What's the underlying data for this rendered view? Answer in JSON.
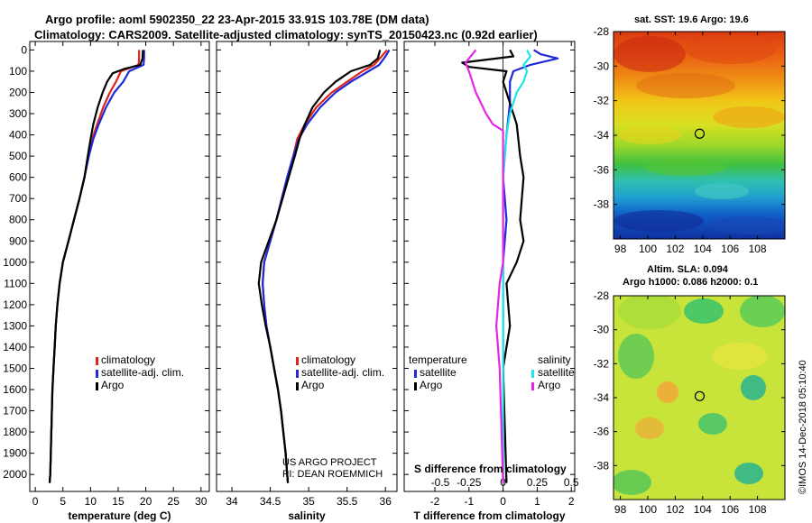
{
  "header": {
    "line1": "Argo profile: aoml 5902350_22 23-Apr-2015 33.91S 103.78E (DM data)",
    "line2": "Climatology: CARS2009. Satellite-adjusted climatology: synTS_20150423.nc (0.92d earlier)"
  },
  "colors": {
    "climatology": "#e0241b",
    "satellite": "#1f2ad6",
    "argo": "#000000",
    "cyan": "#1ee6e6",
    "magenta": "#e626e6"
  },
  "chart_data": [
    {
      "type": "line",
      "id": "temperature",
      "xlabel": "temperature (deg C)",
      "ylabel": "",
      "xlim": [
        -1,
        31.5
      ],
      "ylim": [
        2080,
        -40
      ],
      "xticks": [
        0,
        5,
        10,
        15,
        20,
        25,
        30
      ],
      "yticks": [
        0,
        100,
        200,
        300,
        400,
        500,
        600,
        700,
        800,
        900,
        1000,
        1100,
        1200,
        1300,
        1400,
        1500,
        1600,
        1700,
        1800,
        1900,
        2000
      ],
      "legend": {
        "position": "bottom-left",
        "entries": [
          "climatology",
          "satellite-adj. clim.",
          "Argo"
        ]
      },
      "series": [
        {
          "name": "climatology",
          "color": "#e0241b",
          "points": [
            [
              18.8,
              0
            ],
            [
              18.8,
              40
            ],
            [
              18.7,
              70
            ],
            [
              15.5,
              100
            ],
            [
              14.6,
              150
            ],
            [
              13.5,
              200
            ],
            [
              12.3,
              270
            ],
            [
              11.2,
              350
            ],
            [
              10.3,
              420
            ],
            [
              9.6,
              500
            ],
            [
              8.9,
              600
            ],
            [
              8.0,
              700
            ],
            [
              7.0,
              800
            ],
            [
              6.0,
              900
            ],
            [
              5.0,
              1000
            ],
            [
              4.4,
              1100
            ],
            [
              4.0,
              1200
            ],
            [
              3.7,
              1300
            ],
            [
              3.5,
              1400
            ],
            [
              3.3,
              1500
            ],
            [
              3.1,
              1600
            ],
            [
              3.0,
              1700
            ],
            [
              2.9,
              1800
            ],
            [
              2.8,
              1900
            ],
            [
              2.7,
              2000
            ],
            [
              2.6,
              2040
            ]
          ]
        },
        {
          "name": "satellite-adj. clim.",
          "color": "#1f2ad6",
          "points": [
            [
              19.7,
              0
            ],
            [
              19.7,
              40
            ],
            [
              19.6,
              70
            ],
            [
              17.0,
              100
            ],
            [
              15.9,
              150
            ],
            [
              14.3,
              200
            ],
            [
              12.8,
              270
            ],
            [
              11.5,
              350
            ],
            [
              10.5,
              420
            ],
            [
              9.7,
              500
            ],
            [
              8.9,
              600
            ],
            [
              8.0,
              700
            ],
            [
              7.0,
              800
            ],
            [
              6.0,
              900
            ],
            [
              5.0,
              1000
            ],
            [
              4.4,
              1100
            ],
            [
              4.0,
              1200
            ],
            [
              3.7,
              1300
            ],
            [
              3.5,
              1400
            ],
            [
              3.3,
              1500
            ],
            [
              3.1,
              1600
            ],
            [
              3.0,
              1700
            ],
            [
              2.9,
              1800
            ],
            [
              2.8,
              1900
            ],
            [
              2.7,
              2000
            ],
            [
              2.6,
              2040
            ]
          ]
        },
        {
          "name": "Argo",
          "color": "#000000",
          "points": [
            [
              19.5,
              0
            ],
            [
              19.4,
              40
            ],
            [
              19.0,
              70
            ],
            [
              16.0,
              90
            ],
            [
              14.0,
              110
            ],
            [
              13.0,
              150
            ],
            [
              12.2,
              200
            ],
            [
              11.3,
              270
            ],
            [
              10.5,
              350
            ],
            [
              10.0,
              420
            ],
            [
              9.5,
              500
            ],
            [
              8.9,
              600
            ],
            [
              8.0,
              700
            ],
            [
              7.0,
              800
            ],
            [
              6.0,
              900
            ],
            [
              5.0,
              1000
            ],
            [
              4.4,
              1100
            ],
            [
              4.0,
              1200
            ],
            [
              3.7,
              1300
            ],
            [
              3.5,
              1400
            ],
            [
              3.3,
              1500
            ],
            [
              3.1,
              1600
            ],
            [
              3.0,
              1700
            ],
            [
              2.9,
              1800
            ],
            [
              2.8,
              1900
            ],
            [
              2.7,
              2000
            ],
            [
              2.6,
              2040
            ]
          ]
        }
      ]
    },
    {
      "type": "line",
      "id": "salinity",
      "xlabel": "salinity",
      "xlim": [
        33.8,
        36.15
      ],
      "ylim": [
        2080,
        -40
      ],
      "xticks": [
        34,
        34.5,
        35,
        35.5,
        36
      ],
      "legend": {
        "position": "bottom-left",
        "entries": [
          "climatology",
          "satellite-adj. clim.",
          "Argo"
        ]
      },
      "credit": [
        "US ARGO PROJECT",
        "PI: DEAN ROEMMICH"
      ],
      "series": [
        {
          "name": "climatology",
          "color": "#e0241b",
          "points": [
            [
              36.02,
              0
            ],
            [
              35.95,
              30
            ],
            [
              35.85,
              70
            ],
            [
              35.7,
              100
            ],
            [
              35.5,
              150
            ],
            [
              35.3,
              200
            ],
            [
              35.1,
              270
            ],
            [
              34.95,
              350
            ],
            [
              34.85,
              420
            ],
            [
              34.8,
              500
            ],
            [
              34.72,
              600
            ],
            [
              34.65,
              700
            ],
            [
              34.58,
              800
            ],
            [
              34.5,
              900
            ],
            [
              34.42,
              1000
            ],
            [
              34.4,
              1100
            ],
            [
              34.42,
              1200
            ],
            [
              34.45,
              1300
            ],
            [
              34.5,
              1400
            ],
            [
              34.55,
              1500
            ],
            [
              34.6,
              1600
            ],
            [
              34.64,
              1700
            ],
            [
              34.67,
              1800
            ],
            [
              34.7,
              1900
            ],
            [
              34.72,
              2000
            ],
            [
              34.73,
              2040
            ]
          ]
        },
        {
          "name": "satellite-adj. clim.",
          "color": "#1f2ad6",
          "points": [
            [
              36.05,
              0
            ],
            [
              36.0,
              30
            ],
            [
              35.92,
              70
            ],
            [
              35.78,
              100
            ],
            [
              35.55,
              150
            ],
            [
              35.35,
              200
            ],
            [
              35.15,
              270
            ],
            [
              34.98,
              350
            ],
            [
              34.87,
              420
            ],
            [
              34.8,
              500
            ],
            [
              34.72,
              600
            ],
            [
              34.65,
              700
            ],
            [
              34.58,
              800
            ],
            [
              34.5,
              900
            ],
            [
              34.42,
              1000
            ],
            [
              34.4,
              1100
            ],
            [
              34.42,
              1200
            ],
            [
              34.45,
              1300
            ],
            [
              34.5,
              1400
            ],
            [
              34.55,
              1500
            ],
            [
              34.6,
              1600
            ],
            [
              34.64,
              1700
            ],
            [
              34.67,
              1800
            ],
            [
              34.7,
              1900
            ],
            [
              34.72,
              2000
            ],
            [
              34.73,
              2040
            ]
          ]
        },
        {
          "name": "Argo",
          "color": "#000000",
          "points": [
            [
              35.93,
              0
            ],
            [
              35.9,
              40
            ],
            [
              35.8,
              70
            ],
            [
              35.55,
              100
            ],
            [
              35.35,
              150
            ],
            [
              35.2,
              200
            ],
            [
              35.05,
              270
            ],
            [
              34.95,
              350
            ],
            [
              34.88,
              420
            ],
            [
              34.82,
              500
            ],
            [
              34.74,
              600
            ],
            [
              34.66,
              700
            ],
            [
              34.58,
              800
            ],
            [
              34.48,
              900
            ],
            [
              34.38,
              1000
            ],
            [
              34.35,
              1100
            ],
            [
              34.39,
              1200
            ],
            [
              34.44,
              1300
            ],
            [
              34.5,
              1400
            ],
            [
              34.55,
              1500
            ],
            [
              34.6,
              1600
            ],
            [
              34.64,
              1700
            ],
            [
              34.67,
              1800
            ],
            [
              34.7,
              1900
            ],
            [
              34.72,
              2000
            ],
            [
              34.73,
              2040
            ]
          ]
        }
      ]
    },
    {
      "type": "line",
      "id": "difference",
      "xlabel": "T difference from climatology",
      "xlabel_top": "S difference from climatology",
      "xlim": [
        -2.9,
        2.1
      ],
      "ylim": [
        2080,
        -40
      ],
      "xticks": [
        -2,
        -1,
        0,
        1,
        2
      ],
      "xticklabels_T": [
        "-2",
        "-1",
        "0",
        "1",
        "2"
      ],
      "xticklabels_S": [
        "-0.5",
        "-0.25",
        "0",
        "0.25",
        "0.5"
      ],
      "legend": {
        "left": {
          "title": "temperature",
          "entries": [
            "satellite",
            "Argo"
          ]
        },
        "right": {
          "title": "salinity",
          "entries": [
            "satellite",
            "Argo"
          ]
        }
      },
      "series": [
        {
          "name": "T satellite",
          "color": "#1f2ad6",
          "points": [
            [
              0.9,
              0
            ],
            [
              1.1,
              20
            ],
            [
              1.6,
              40
            ],
            [
              0.8,
              70
            ],
            [
              0.3,
              100
            ],
            [
              0.2,
              150
            ],
            [
              0.2,
              250
            ],
            [
              0.1,
              400
            ],
            [
              0.0,
              600
            ],
            [
              0.1,
              800
            ],
            [
              0.0,
              1000
            ],
            [
              0.0,
              1500
            ],
            [
              0.0,
              2040
            ]
          ]
        },
        {
          "name": "T Argo",
          "color": "#000000",
          "points": [
            [
              0.2,
              0
            ],
            [
              0.3,
              30
            ],
            [
              -1.2,
              60
            ],
            [
              -1.0,
              80
            ],
            [
              0.1,
              100
            ],
            [
              0.0,
              150
            ],
            [
              0.2,
              250
            ],
            [
              0.4,
              350
            ],
            [
              0.5,
              500
            ],
            [
              0.6,
              600
            ],
            [
              0.5,
              800
            ],
            [
              0.6,
              900
            ],
            [
              0.4,
              1000
            ],
            [
              0.1,
              1100
            ],
            [
              0.2,
              1300
            ],
            [
              0.0,
              1500
            ],
            [
              0.1,
              2040
            ]
          ]
        },
        {
          "name": "S satellite",
          "color": "#1ee6e6",
          "points": [
            [
              0.7,
              0
            ],
            [
              0.8,
              30
            ],
            [
              0.6,
              70
            ],
            [
              0.7,
              100
            ],
            [
              0.6,
              150
            ],
            [
              0.4,
              200
            ],
            [
              0.2,
              300
            ],
            [
              0.1,
              400
            ],
            [
              0.0,
              600
            ],
            [
              0.0,
              900
            ],
            [
              0.0,
              1500
            ],
            [
              0.0,
              2040
            ]
          ]
        },
        {
          "name": "S Argo",
          "color": "#e626e6",
          "points": [
            [
              -0.8,
              0
            ],
            [
              -1.1,
              60
            ],
            [
              -1.0,
              100
            ],
            [
              -0.8,
              200
            ],
            [
              -0.5,
              300
            ],
            [
              -0.3,
              350
            ],
            [
              0.0,
              380
            ],
            [
              0.0,
              1000
            ],
            [
              -0.1,
              1100
            ],
            [
              -0.2,
              1300
            ],
            [
              -0.1,
              1500
            ],
            [
              0.0,
              2040
            ]
          ]
        }
      ]
    },
    {
      "type": "heatmap",
      "id": "sst-map",
      "title": "sat. SST: 19.6 Argo: 19.6",
      "xlim": [
        97.5,
        110
      ],
      "ylim": [
        -40,
        -28
      ],
      "xticks": [
        98,
        100,
        102,
        104,
        106,
        108
      ],
      "yticks": [
        -28,
        -30,
        -32,
        -34,
        -36,
        -38
      ],
      "marker": {
        "lon": 103.78,
        "lat": -33.91
      }
    },
    {
      "type": "heatmap",
      "id": "sla-map",
      "title": "Altim. SLA: 0.094",
      "subtitle": "Argo h1000: 0.086 h2000: 0.1",
      "xlim": [
        97.5,
        110
      ],
      "ylim": [
        -40,
        -28
      ],
      "xticks": [
        98,
        100,
        102,
        104,
        106,
        108
      ],
      "yticks": [
        -28,
        -30,
        -32,
        -34,
        -36,
        -38
      ],
      "marker": {
        "lon": 103.78,
        "lat": -33.91
      }
    }
  ],
  "footer": {
    "stamp": "©IMOS 14-Dec-2018 05:10:40"
  }
}
